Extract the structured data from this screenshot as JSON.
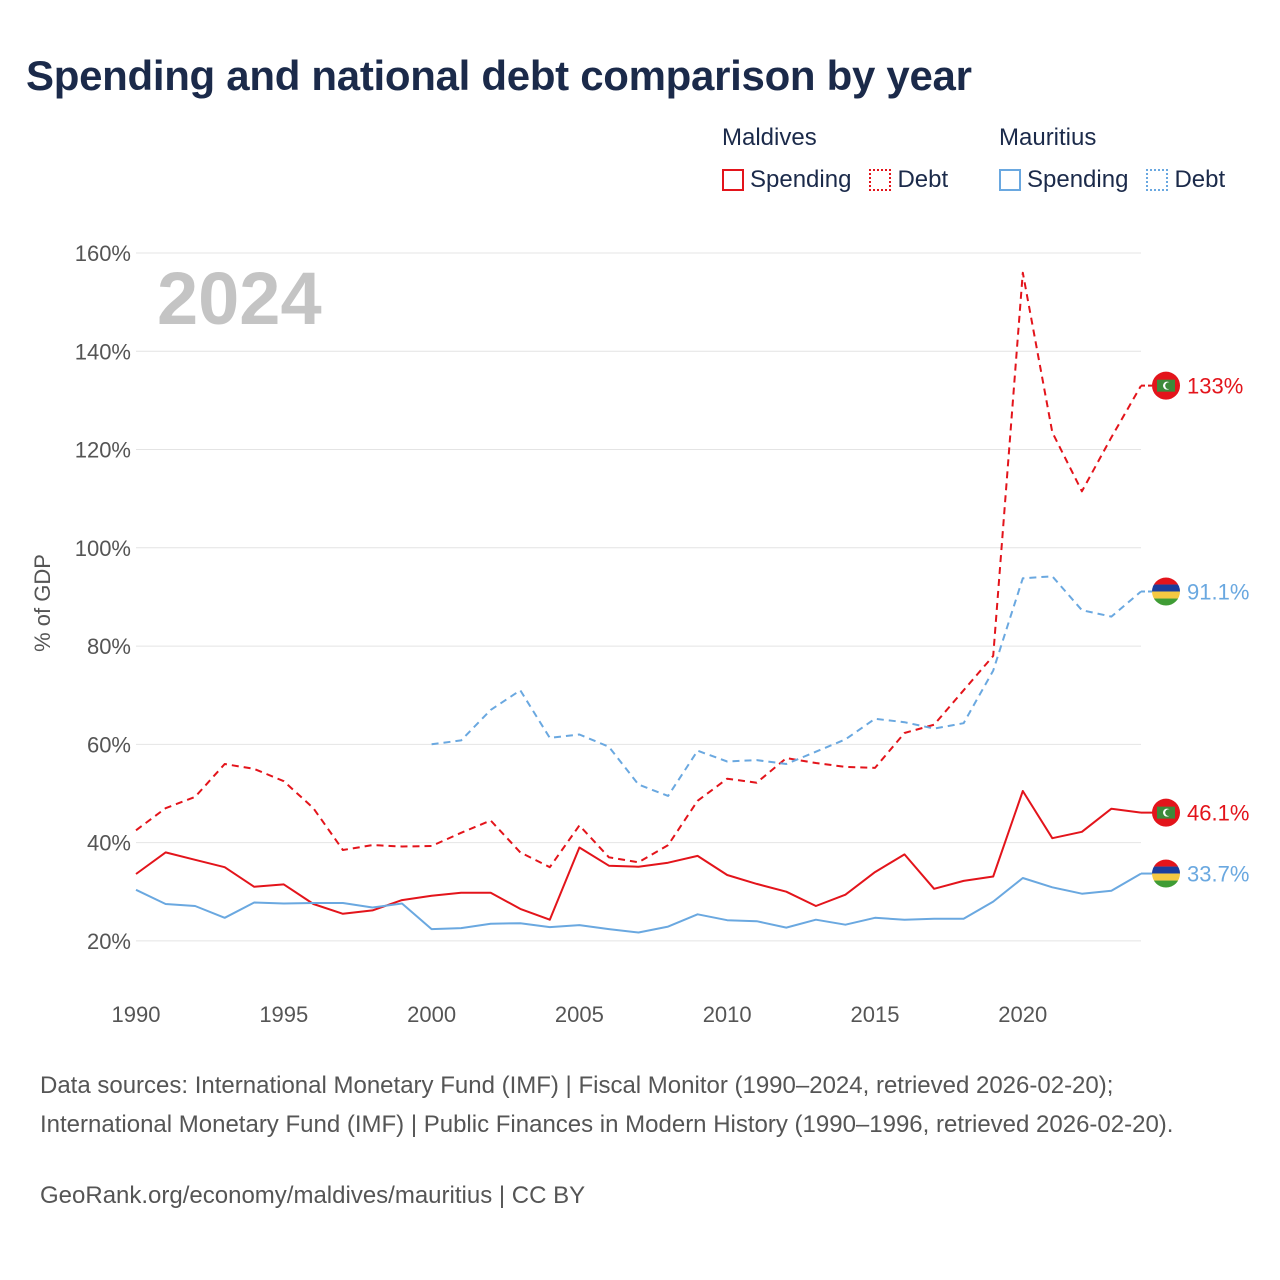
{
  "title": "Spending and national debt comparison by year",
  "legend": {
    "groups": [
      {
        "name": "Maldives",
        "spending_label": "Spending",
        "debt_label": "Debt",
        "color": "#e3141b"
      },
      {
        "name": "Mauritius",
        "spending_label": "Spending",
        "debt_label": "Debt",
        "color": "#6aa8e0"
      }
    ]
  },
  "footer": {
    "sources": "Data sources: International Monetary Fund (IMF) | Fiscal Monitor (1990–2024, retrieved 2026-02-20); International Monetary Fund (IMF) | Public Finances in Modern History (1990–1996, retrieved 2026-02-20).",
    "credit": "GeoRank.org/economy/maldives/mauritius | CC BY"
  },
  "chart_data": {
    "type": "line",
    "title": "Spending and national debt comparison by year",
    "year_label": "2024",
    "xlabel": "",
    "ylabel": "% of GDP",
    "xlim": [
      1990,
      2024
    ],
    "ylim": [
      10,
      160
    ],
    "x_ticks": [
      1990,
      1995,
      2000,
      2005,
      2010,
      2015,
      2020
    ],
    "y_ticks": [
      20,
      40,
      60,
      80,
      100,
      120,
      140,
      160
    ],
    "y_tick_labels": [
      "20%",
      "40%",
      "60%",
      "80%",
      "100%",
      "120%",
      "140%",
      "160%"
    ],
    "grid": true,
    "series": [
      {
        "name": "Maldives Debt",
        "country": "Maldives",
        "metric": "Debt",
        "color": "#e3141b",
        "dash": "dashed",
        "x": [
          1990,
          1991,
          1992,
          1993,
          1994,
          1995,
          1996,
          1997,
          1998,
          1999,
          2000,
          2001,
          2002,
          2003,
          2004,
          2005,
          2006,
          2007,
          2008,
          2009,
          2010,
          2011,
          2012,
          2013,
          2014,
          2015,
          2016,
          2017,
          2018,
          2019,
          2020,
          2021,
          2022,
          2023,
          2024
        ],
        "values": [
          42.5,
          47,
          49.3,
          56,
          55,
          52.5,
          47,
          38.5,
          39.5,
          39.2,
          39.3,
          42,
          44.5,
          38,
          35,
          43.5,
          37,
          36,
          39.5,
          48.5,
          53,
          52.2,
          57.2,
          56.2,
          55.4,
          55.2,
          62.3,
          64,
          71,
          78,
          156,
          123.5,
          111.5,
          122.5,
          133
        ],
        "end_label": "133%"
      },
      {
        "name": "Mauritius Debt",
        "country": "Mauritius",
        "metric": "Debt",
        "color": "#6aa8e0",
        "dash": "dashed",
        "x": [
          2000,
          2001,
          2002,
          2003,
          2004,
          2005,
          2006,
          2007,
          2008,
          2009,
          2010,
          2011,
          2012,
          2013,
          2014,
          2015,
          2016,
          2017,
          2018,
          2019,
          2020,
          2021,
          2022,
          2023,
          2024
        ],
        "values": [
          60,
          60.8,
          67,
          71,
          61.3,
          62,
          59.5,
          51.8,
          49.5,
          58.7,
          56.5,
          56.8,
          56,
          58.5,
          61,
          65.2,
          64.5,
          63.2,
          64.3,
          75,
          93.8,
          94.2,
          87.3,
          86,
          91.1
        ],
        "end_label": "91.1%"
      },
      {
        "name": "Maldives Spending",
        "country": "Maldives",
        "metric": "Spending",
        "color": "#e3141b",
        "dash": "solid",
        "x": [
          1990,
          1991,
          1992,
          1993,
          1994,
          1995,
          1996,
          1997,
          1998,
          1999,
          2000,
          2001,
          2002,
          2003,
          2004,
          2005,
          2006,
          2007,
          2008,
          2009,
          2010,
          2011,
          2012,
          2013,
          2014,
          2015,
          2016,
          2017,
          2018,
          2019,
          2020,
          2021,
          2022,
          2023,
          2024
        ],
        "values": [
          33.6,
          38,
          36.5,
          35,
          31,
          31.5,
          27.5,
          25.5,
          26.2,
          28.3,
          29.2,
          29.8,
          29.8,
          26.5,
          24.3,
          39,
          35.3,
          35.1,
          35.9,
          37.3,
          33.4,
          31.6,
          30,
          27.1,
          29.4,
          34,
          37.6,
          30.6,
          32.2,
          33.1,
          50.5,
          40.9,
          42.2,
          46.9,
          46.1
        ],
        "end_label": "46.1%"
      },
      {
        "name": "Mauritius Spending",
        "country": "Mauritius",
        "metric": "Spending",
        "color": "#6aa8e0",
        "dash": "solid",
        "x": [
          1990,
          1991,
          1992,
          1993,
          1994,
          1995,
          1996,
          1997,
          1998,
          1999,
          2000,
          2001,
          2002,
          2003,
          2004,
          2005,
          2006,
          2007,
          2008,
          2009,
          2010,
          2011,
          2012,
          2013,
          2014,
          2015,
          2016,
          2017,
          2018,
          2019,
          2020,
          2021,
          2022,
          2023,
          2024
        ],
        "values": [
          30.4,
          27.5,
          27.1,
          24.7,
          27.8,
          27.6,
          27.7,
          27.7,
          26.8,
          27.6,
          22.4,
          22.6,
          23.5,
          23.6,
          22.8,
          23.2,
          22.4,
          21.7,
          22.9,
          25.4,
          24.2,
          24,
          22.7,
          24.3,
          23.3,
          24.7,
          24.3,
          24.5,
          24.5,
          28,
          32.8,
          30.9,
          29.6,
          30.2,
          33.7
        ],
        "end_label": "33.7%"
      }
    ]
  }
}
